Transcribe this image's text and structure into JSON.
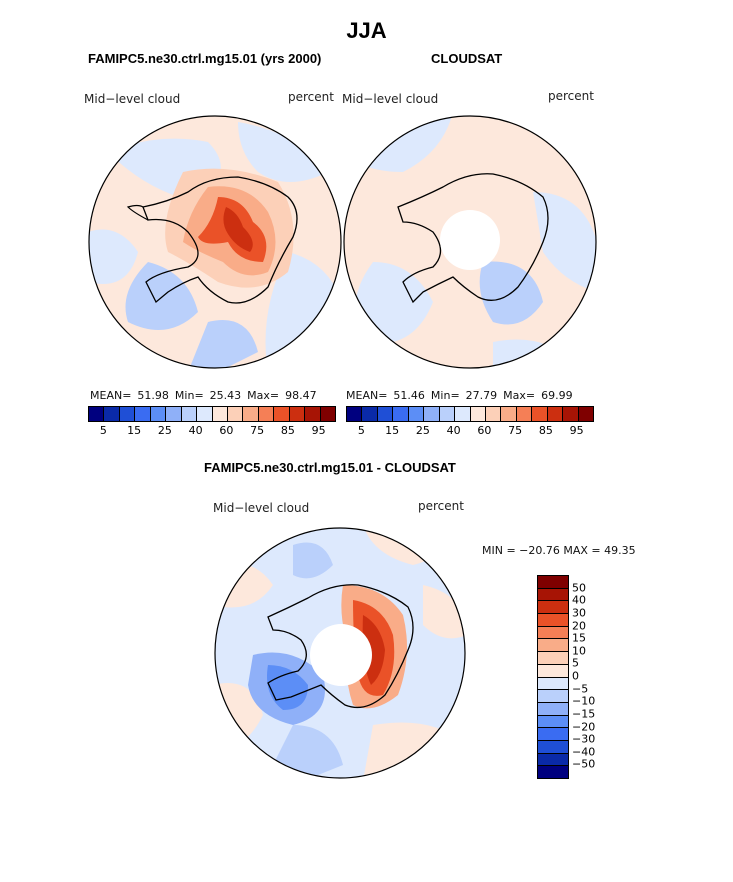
{
  "title": "JJA",
  "panel_left": {
    "heading": "FAMIPC5.ne30.ctrl.mg15.01 (yrs 2000)",
    "field": "Mid−level cloud",
    "units": "percent",
    "stats": {
      "mean_label": "MEAN=",
      "mean": "51.98",
      "min_label": "Min=",
      "min": "25.43",
      "max_label": "Max=",
      "max": "98.47"
    }
  },
  "panel_right": {
    "heading": "CLOUDSAT",
    "field": "Mid−level cloud",
    "units": "percent",
    "stats": {
      "mean_label": "MEAN=",
      "mean": "51.46",
      "min_label": "Min=",
      "min": "27.79",
      "max_label": "Max=",
      "max": "69.99"
    }
  },
  "colorbar_top": {
    "colors": [
      "#00007f",
      "#0a2aa8",
      "#1f4fd6",
      "#3a6cf2",
      "#5c8ef6",
      "#8fb0f8",
      "#bad0fb",
      "#dde9fd",
      "#fde8dc",
      "#fcd0b8",
      "#f9ac88",
      "#f57f56",
      "#ea5228",
      "#cc2f10",
      "#a71405",
      "#7f0000"
    ],
    "tick_labels": [
      "5",
      "15",
      "25",
      "40",
      "60",
      "75",
      "85",
      "95"
    ]
  },
  "panel_diff": {
    "heading": "FAMIPC5.ne30.ctrl.mg15.01 - CLOUDSAT",
    "field": "Mid−level cloud",
    "units": "percent",
    "minmax": "MIN = −20.76 MAX =  49.35"
  },
  "colorbar_diff": {
    "colors": [
      "#7f0000",
      "#a71405",
      "#cc2f10",
      "#ea5228",
      "#f57f56",
      "#f9ac88",
      "#fcd0b8",
      "#fde8dc",
      "#dde9fd",
      "#bad0fb",
      "#8fb0f8",
      "#5c8ef6",
      "#3a6cf2",
      "#1f4fd6",
      "#0a2aa8",
      "#00007f"
    ],
    "tick_labels": [
      "50",
      "40",
      "30",
      "20",
      "15",
      "10",
      "5",
      "0",
      "−5",
      "−10",
      "−15",
      "−20",
      "−30",
      "−40",
      "−50"
    ]
  }
}
